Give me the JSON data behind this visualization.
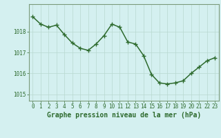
{
  "x": [
    0,
    1,
    2,
    3,
    4,
    5,
    6,
    7,
    8,
    9,
    10,
    11,
    12,
    13,
    14,
    15,
    16,
    17,
    18,
    19,
    20,
    21,
    22,
    23
  ],
  "y": [
    1018.7,
    1018.35,
    1018.2,
    1018.3,
    1017.85,
    1017.45,
    1017.2,
    1017.1,
    1017.4,
    1017.8,
    1018.35,
    1018.2,
    1017.5,
    1017.4,
    1016.85,
    1015.95,
    1015.55,
    1015.5,
    1015.55,
    1015.65,
    1016.0,
    1016.3,
    1016.6,
    1016.75
  ],
  "line_color": "#2d6a2d",
  "marker_color": "#2d6a2d",
  "bg_color": "#d4f0f0",
  "grid_color": "#b8d8d0",
  "axis_color": "#2d6a2d",
  "spine_color": "#7a9a7a",
  "ylabel_ticks": [
    1015,
    1016,
    1017,
    1018
  ],
  "xlabel_ticks": [
    0,
    1,
    2,
    3,
    4,
    5,
    6,
    7,
    8,
    9,
    10,
    11,
    12,
    13,
    14,
    15,
    16,
    17,
    18,
    19,
    20,
    21,
    22,
    23
  ],
  "ylim": [
    1014.7,
    1019.3
  ],
  "xlim": [
    -0.5,
    23.5
  ],
  "xlabel": "Graphe pression niveau de la mer (hPa)",
  "xlabel_fontsize": 7.0,
  "tick_fontsize": 5.5,
  "linewidth": 1.1,
  "markersize": 4,
  "marker": "+"
}
